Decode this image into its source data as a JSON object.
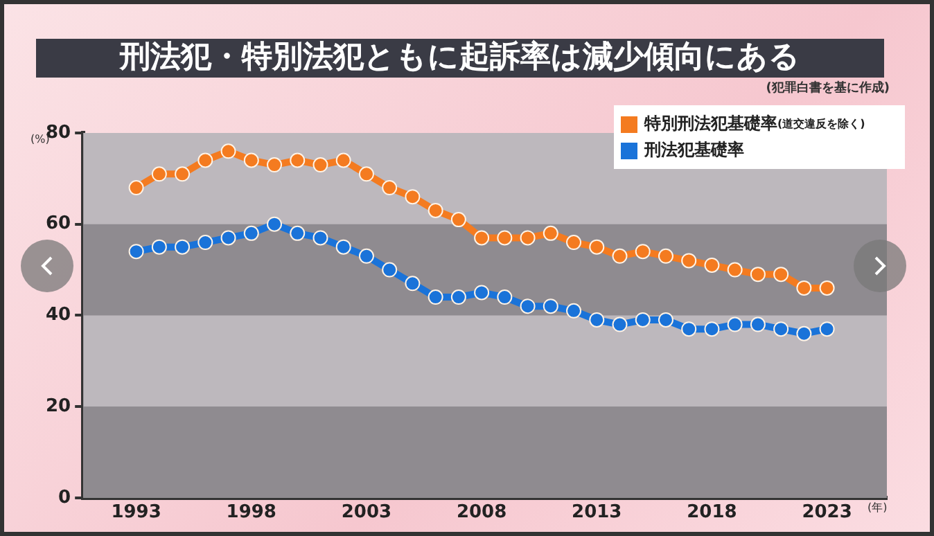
{
  "chart_data": {
    "type": "line",
    "title": "刑法犯・特別法犯ともに起訴率は減少傾向にある",
    "annotations": [
      "(犯罪白書を基に作成)"
    ],
    "ylabel": "(%)",
    "xlabel": "(年)",
    "x": [
      1993,
      1994,
      1995,
      1996,
      1997,
      1998,
      1999,
      2000,
      2001,
      2002,
      2003,
      2004,
      2005,
      2006,
      2007,
      2008,
      2009,
      2010,
      2011,
      2012,
      2013,
      2014,
      2015,
      2016,
      2017,
      2018,
      2019,
      2020,
      2021,
      2022,
      2023
    ],
    "series": [
      {
        "name": "特別刑法犯基礎率(道交違反を除く)",
        "color": "#f47b20",
        "values": [
          68,
          71,
          71,
          74,
          76,
          74,
          73,
          74,
          73,
          74,
          71,
          68,
          66,
          63,
          61,
          57,
          57,
          57,
          58,
          56,
          55,
          53,
          54,
          53,
          52,
          51,
          50,
          49,
          49,
          46,
          46
        ]
      },
      {
        "name": "刑法犯基礎率",
        "color": "#1a73d9",
        "values": [
          54,
          55,
          55,
          56,
          57,
          58,
          60,
          58,
          57,
          55,
          53,
          50,
          47,
          44,
          44,
          45,
          44,
          42,
          42,
          41,
          39,
          38,
          39,
          39,
          37,
          37,
          38,
          38,
          37,
          36,
          37
        ]
      }
    ],
    "xlim": [
      1990.7,
      2025.6
    ],
    "xticks": [
      1993,
      1998,
      2003,
      2008,
      2013,
      2018,
      2023
    ],
    "ylim": [
      0,
      80
    ],
    "yticks": [
      0,
      20,
      40,
      60,
      80
    ],
    "bands": [
      {
        "axis": "y",
        "from": 0,
        "to": 20,
        "color": "#8f8b90"
      },
      {
        "axis": "y",
        "from": 40,
        "to": 60,
        "color": "#8f8b90"
      }
    ],
    "grid": false,
    "legend": "top right",
    "marker": "circle",
    "line_style": "solid"
  }
}
